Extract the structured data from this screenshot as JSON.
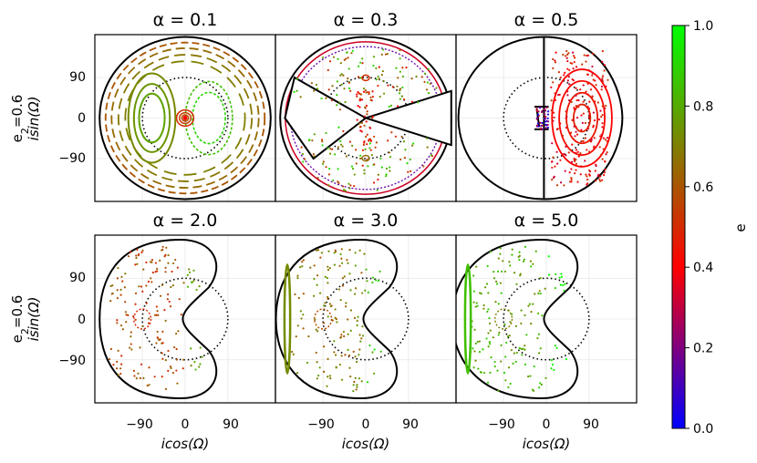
{
  "chart_data": {
    "type": "scatter",
    "figure_description_free": true,
    "row_label_line1": "e",
    "row_label_sub": "2",
    "row_label_eq": "=0.6",
    "row_label_line2": "isin(Ω)",
    "x_axis_label": "icos(Ω)",
    "xlim": [
      -190,
      190
    ],
    "ylim": [
      -185,
      185
    ],
    "xticks": [
      -90,
      0,
      90
    ],
    "yticks": [
      90,
      0,
      -90
    ],
    "xtick_labels": [
      "−90",
      "0",
      "90"
    ],
    "ytick_labels": [
      "90",
      "0",
      "−90"
    ],
    "colorbar": {
      "label": "e",
      "range": [
        0.0,
        1.0
      ],
      "ticks": [
        "1.0",
        "0.8",
        "0.6",
        "0.4",
        "0.2",
        "0.0"
      ],
      "colors": [
        "#0000ff",
        "#ff0000",
        "#00ff00"
      ]
    },
    "panels": [
      {
        "title": "α = 0.1",
        "alpha": 0.1,
        "row": 0,
        "col": 0
      },
      {
        "title": "α = 0.3",
        "alpha": 0.3,
        "row": 0,
        "col": 1
      },
      {
        "title": "α = 0.5",
        "alpha": 0.5,
        "row": 0,
        "col": 2
      },
      {
        "title": "α = 2.0",
        "alpha": 2.0,
        "row": 1,
        "col": 0
      },
      {
        "title": "α = 3.0",
        "alpha": 3.0,
        "row": 1,
        "col": 1
      },
      {
        "title": "α = 5.0",
        "alpha": 5.0,
        "row": 1,
        "col": 2
      }
    ],
    "reference_circle_radius": 90,
    "outer_circle_radius": 180
  }
}
